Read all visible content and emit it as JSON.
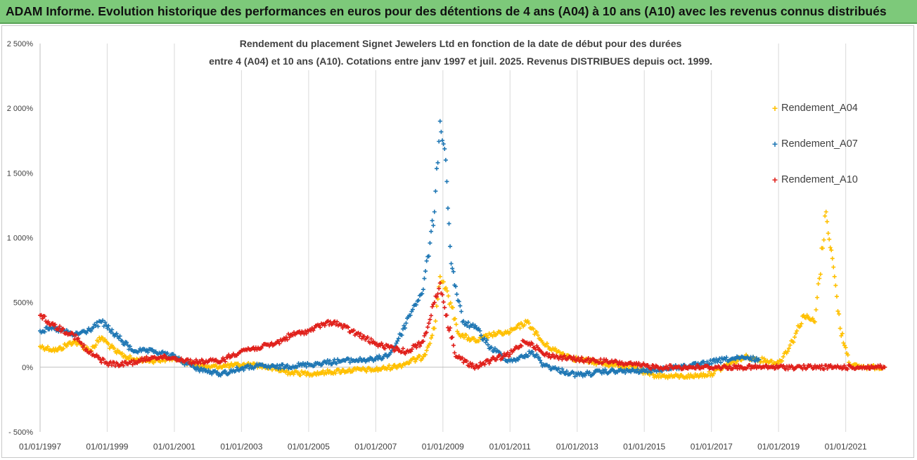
{
  "banner": {
    "title": "ADAM Informe. Evolution historique des performances en euros pour des détentions de 4 ans (A04) à 10 ans (A10) avec les revenus connus distribués"
  },
  "chart_data": {
    "type": "scatter",
    "title_line1": "Rendement du placement Signet Jewelers Ltd en fonction de la date de début pour des durées",
    "title_line2": "entre 4 (A04) et 10 ans (A10). Cotations entre janv 1997 et juil. 2025. Revenus DISTRIBUES depuis oct. 1999.",
    "xlabel": "",
    "ylabel": "",
    "x_range": [
      "1997-01-01",
      "2022-03-31"
    ],
    "ylim": [
      -500,
      2500
    ],
    "y_ticks": [
      -500,
      0,
      500,
      1000,
      1500,
      2000,
      2500
    ],
    "y_tick_labels": [
      "- 500%",
      "0%",
      "500%",
      "1 000%",
      "1 500%",
      "2 000%",
      "2 500%"
    ],
    "x_ticks": [
      "1997-01-01",
      "1999-01-01",
      "2001-01-01",
      "2003-01-01",
      "2005-01-01",
      "2007-01-01",
      "2009-01-01",
      "2011-01-01",
      "2013-01-01",
      "2015-01-01",
      "2017-01-01",
      "2019-01-01",
      "2021-01-01"
    ],
    "x_tick_labels": [
      "01/01/1997",
      "01/01/1999",
      "01/01/2001",
      "01/01/2003",
      "01/01/2005",
      "01/01/2007",
      "01/01/2009",
      "01/01/2011",
      "01/01/2013",
      "01/01/2015",
      "01/01/2017",
      "01/01/2019",
      "01/01/2021"
    ],
    "grid": "vertical",
    "marker": "+",
    "legend_position": "right",
    "series": [
      {
        "name": "Rendement_A04",
        "color": "#ffc000",
        "points": [
          [
            "1997-01-01",
            160
          ],
          [
            "1997-07-01",
            130
          ],
          [
            "1998-01-01",
            200
          ],
          [
            "1998-07-01",
            130
          ],
          [
            "1998-11-01",
            230
          ],
          [
            "1999-04-01",
            120
          ],
          [
            "1999-10-01",
            60
          ],
          [
            "2000-06-01",
            50
          ],
          [
            "2001-01-01",
            70
          ],
          [
            "2001-06-01",
            30
          ],
          [
            "2002-01-01",
            0
          ],
          [
            "2002-07-01",
            10
          ],
          [
            "2003-06-01",
            20
          ],
          [
            "2004-06-01",
            -40
          ],
          [
            "2005-01-01",
            -50
          ],
          [
            "2005-07-01",
            -40
          ],
          [
            "2006-06-01",
            -20
          ],
          [
            "2007-01-01",
            -20
          ],
          [
            "2007-09-01",
            10
          ],
          [
            "2008-06-01",
            80
          ],
          [
            "2008-10-01",
            300
          ],
          [
            "2008-12-01",
            700
          ],
          [
            "2009-03-01",
            550
          ],
          [
            "2009-07-01",
            250
          ],
          [
            "2010-01-01",
            200
          ],
          [
            "2010-06-01",
            250
          ],
          [
            "2011-01-01",
            270
          ],
          [
            "2011-07-01",
            350
          ],
          [
            "2011-09-01",
            300
          ],
          [
            "2012-01-01",
            180
          ],
          [
            "2012-06-01",
            120
          ],
          [
            "2013-01-01",
            60
          ],
          [
            "2014-01-01",
            20
          ],
          [
            "2014-09-01",
            0
          ],
          [
            "2015-03-01",
            -60
          ],
          [
            "2015-09-01",
            -70
          ],
          [
            "2016-06-01",
            -70
          ],
          [
            "2017-01-01",
            -50
          ],
          [
            "2017-06-01",
            10
          ],
          [
            "2018-01-01",
            80
          ],
          [
            "2018-06-01",
            60
          ],
          [
            "2018-09-01",
            50
          ],
          [
            "2019-01-01",
            30
          ],
          [
            "2019-06-01",
            200
          ],
          [
            "2019-10-01",
            400
          ],
          [
            "2020-02-01",
            350
          ],
          [
            "2020-06-01",
            1200
          ],
          [
            "2020-09-01",
            700
          ],
          [
            "2020-11-01",
            300
          ],
          [
            "2021-03-01",
            10
          ],
          [
            "2021-09-01",
            0
          ],
          [
            "2022-03-01",
            0
          ]
        ]
      },
      {
        "name": "Rendement_A07",
        "color": "#1f77b4",
        "points": [
          [
            "1997-01-01",
            280
          ],
          [
            "1997-06-01",
            300
          ],
          [
            "1998-01-01",
            250
          ],
          [
            "1998-06-01",
            280
          ],
          [
            "1998-11-01",
            350
          ],
          [
            "1999-04-01",
            250
          ],
          [
            "1999-10-01",
            130
          ],
          [
            "2000-06-01",
            120
          ],
          [
            "2001-01-01",
            80
          ],
          [
            "2001-08-01",
            0
          ],
          [
            "2002-02-01",
            -40
          ],
          [
            "2002-06-01",
            -50
          ],
          [
            "2003-01-01",
            -10
          ],
          [
            "2003-07-01",
            10
          ],
          [
            "2004-01-01",
            0
          ],
          [
            "2005-01-01",
            20
          ],
          [
            "2006-01-01",
            50
          ],
          [
            "2007-01-01",
            60
          ],
          [
            "2007-06-01",
            100
          ],
          [
            "2007-10-01",
            250
          ],
          [
            "2008-01-01",
            400
          ],
          [
            "2008-06-01",
            600
          ],
          [
            "2008-10-01",
            1200
          ],
          [
            "2008-12-01",
            1900
          ],
          [
            "2009-02-01",
            1600
          ],
          [
            "2009-04-01",
            800
          ],
          [
            "2009-08-01",
            350
          ],
          [
            "2010-01-01",
            300
          ],
          [
            "2010-06-01",
            150
          ],
          [
            "2011-01-01",
            50
          ],
          [
            "2011-06-01",
            80
          ],
          [
            "2011-09-01",
            120
          ],
          [
            "2012-01-01",
            20
          ],
          [
            "2012-06-01",
            -20
          ],
          [
            "2013-01-01",
            -60
          ],
          [
            "2014-01-01",
            -30
          ],
          [
            "2015-01-01",
            -30
          ],
          [
            "2016-01-01",
            0
          ],
          [
            "2016-09-01",
            20
          ],
          [
            "2017-06-01",
            60
          ],
          [
            "2018-01-01",
            70
          ],
          [
            "2018-06-01",
            60
          ]
        ]
      },
      {
        "name": "Rendement_A10",
        "color": "#e0201b",
        "points": [
          [
            "1997-01-01",
            400
          ],
          [
            "1997-06-01",
            320
          ],
          [
            "1998-01-01",
            250
          ],
          [
            "1998-06-01",
            120
          ],
          [
            "1999-01-01",
            30
          ],
          [
            "1999-06-01",
            20
          ],
          [
            "2000-01-01",
            50
          ],
          [
            "2000-06-01",
            80
          ],
          [
            "2001-01-01",
            70
          ],
          [
            "2001-08-01",
            40
          ],
          [
            "2002-06-01",
            50
          ],
          [
            "2003-01-01",
            130
          ],
          [
            "2003-07-01",
            150
          ],
          [
            "2004-01-01",
            180
          ],
          [
            "2004-07-01",
            250
          ],
          [
            "2005-01-01",
            280
          ],
          [
            "2005-06-01",
            330
          ],
          [
            "2005-10-01",
            350
          ],
          [
            "2006-06-01",
            260
          ],
          [
            "2007-01-01",
            180
          ],
          [
            "2007-06-01",
            150
          ],
          [
            "2007-12-01",
            120
          ],
          [
            "2008-06-01",
            200
          ],
          [
            "2008-10-01",
            500
          ],
          [
            "2008-12-01",
            650
          ],
          [
            "2009-02-01",
            400
          ],
          [
            "2009-06-01",
            80
          ],
          [
            "2009-12-01",
            0
          ],
          [
            "2010-06-01",
            50
          ],
          [
            "2011-01-01",
            100
          ],
          [
            "2011-06-01",
            200
          ],
          [
            "2011-09-01",
            180
          ],
          [
            "2012-01-01",
            100
          ],
          [
            "2012-06-01",
            80
          ],
          [
            "2013-01-01",
            60
          ],
          [
            "2014-01-01",
            40
          ],
          [
            "2014-09-01",
            20
          ],
          [
            "2015-06-01",
            0
          ],
          [
            "2016-01-01",
            0
          ],
          [
            "2022-03-01",
            0
          ]
        ]
      }
    ]
  }
}
